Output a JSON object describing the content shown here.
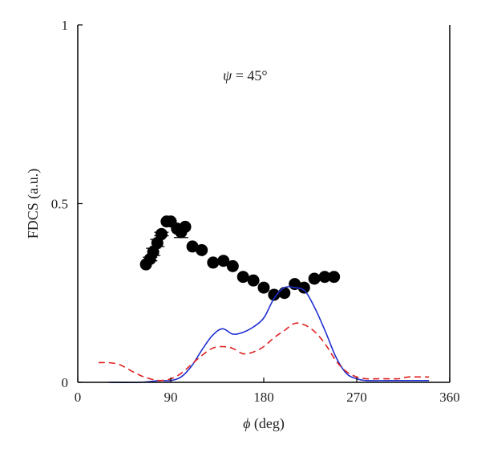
{
  "chart_data": {
    "type": "scatter",
    "annotation": {
      "symbol": "ψ",
      "rest": " = 45°"
    },
    "xlabel": {
      "symbol": "ϕ",
      "rest": " (deg)"
    },
    "ylabel": "FDCS (a.u.)",
    "xlim": [
      0,
      360
    ],
    "ylim": [
      0,
      1
    ],
    "xticks": [
      0,
      90,
      180,
      270,
      360
    ],
    "yticks": [
      0,
      0.5,
      1
    ],
    "ytick_labels": [
      "0",
      "0.5",
      "1"
    ],
    "grid": false,
    "legend": "none",
    "series": [
      {
        "kind": "points",
        "color": "#000000",
        "x": [
          66,
          70,
          73,
          77,
          81,
          86,
          90,
          96,
          100,
          104,
          111,
          120,
          131,
          141,
          150,
          160,
          170,
          180,
          190,
          200,
          210,
          219,
          229,
          239,
          248
        ],
        "y": [
          0.33,
          0.345,
          0.365,
          0.39,
          0.415,
          0.45,
          0.45,
          0.43,
          0.42,
          0.435,
          0.38,
          0.37,
          0.335,
          0.34,
          0.325,
          0.295,
          0.285,
          0.265,
          0.245,
          0.25,
          0.275,
          0.265,
          0.29,
          0.295,
          0.295
        ],
        "yerr": [
          0,
          0.005,
          0.01,
          0.01,
          0.005,
          0,
          0,
          0,
          0.015,
          0,
          0,
          0,
          0,
          0,
          0,
          0,
          0,
          0,
          0,
          0,
          0,
          0,
          0,
          0,
          0
        ]
      },
      {
        "kind": "solid-line",
        "color": "#1f2fd0",
        "x": [
          30,
          60,
          80,
          90,
          100,
          110,
          120,
          130,
          140,
          150,
          160,
          170,
          180,
          190,
          200,
          210,
          220,
          230,
          240,
          250,
          260,
          270,
          280,
          300,
          320,
          340
        ],
        "y": [
          0,
          0,
          0.005,
          0.005,
          0.015,
          0.045,
          0.09,
          0.13,
          0.15,
          0.135,
          0.14,
          0.155,
          0.18,
          0.235,
          0.265,
          0.265,
          0.255,
          0.205,
          0.14,
          0.07,
          0.025,
          0.01,
          0.005,
          0.005,
          0.005,
          0.005
        ]
      },
      {
        "kind": "dashed-line",
        "color": "#e02020",
        "x": [
          20,
          30,
          40,
          50,
          60,
          70,
          80,
          90,
          100,
          110,
          120,
          130,
          140,
          150,
          160,
          170,
          180,
          190,
          200,
          210,
          220,
          230,
          240,
          250,
          260,
          270,
          280,
          290,
          300,
          310,
          320,
          330,
          340
        ],
        "y": [
          0.055,
          0.055,
          0.05,
          0.035,
          0.02,
          0.01,
          0.005,
          0.01,
          0.025,
          0.05,
          0.075,
          0.095,
          0.1,
          0.095,
          0.08,
          0.085,
          0.1,
          0.125,
          0.145,
          0.165,
          0.16,
          0.14,
          0.105,
          0.06,
          0.03,
          0.015,
          0.01,
          0.01,
          0.01,
          0.01,
          0.015,
          0.015,
          0.015
        ]
      }
    ]
  }
}
